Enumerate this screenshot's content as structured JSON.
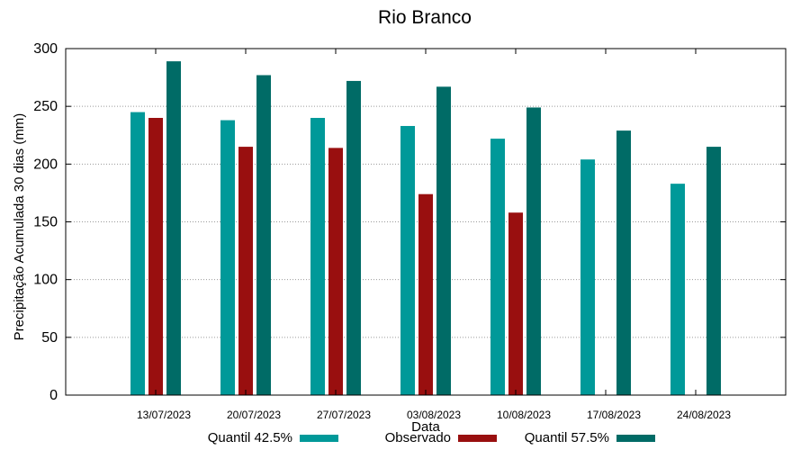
{
  "chart_data": {
    "type": "bar",
    "title": "Rio Branco",
    "xlabel": "Data",
    "ylabel": "Precipitação Acumulada 30 dias (mm)",
    "ylim": [
      0,
      300
    ],
    "yticks": [
      0,
      50,
      100,
      150,
      200,
      250,
      300
    ],
    "grid": true,
    "legend_position": "bottom",
    "categories": [
      "13/07/2023",
      "20/07/2023",
      "27/07/2023",
      "03/08/2023",
      "10/08/2023",
      "17/08/2023",
      "24/08/2023"
    ],
    "series": [
      {
        "name": "Quantil 42.5%",
        "color": "#009999",
        "values": [
          245,
          238,
          240,
          233,
          222,
          204,
          183
        ]
      },
      {
        "name": "Observado",
        "color": "#990f0f",
        "values": [
          240,
          215,
          214,
          174,
          158,
          null,
          null
        ]
      },
      {
        "name": "Quantil 57.5%",
        "color": "#006b66",
        "values": [
          289,
          277,
          272,
          267,
          249,
          229,
          215
        ]
      }
    ]
  }
}
